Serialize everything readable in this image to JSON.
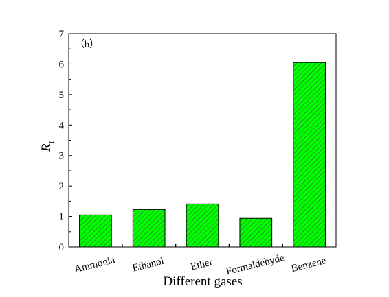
{
  "chart_data": {
    "type": "bar",
    "panel_label": "（b）",
    "categories": [
      "Ammonia",
      "Ethanol",
      "Ether",
      "Formaldehyde",
      "Benzene"
    ],
    "values": [
      1.05,
      1.23,
      1.41,
      0.94,
      6.05
    ],
    "xlabel": "Different gases",
    "ylabel_main": "R",
    "ylabel_sub": "r",
    "ylim": [
      0,
      7
    ],
    "yticks": [
      "0",
      "1",
      "2",
      "3",
      "4",
      "5",
      "6",
      "7"
    ],
    "bar_color": "#00ff00",
    "hatch_color": "#2e7d2e",
    "grid": false,
    "legend": "none"
  }
}
